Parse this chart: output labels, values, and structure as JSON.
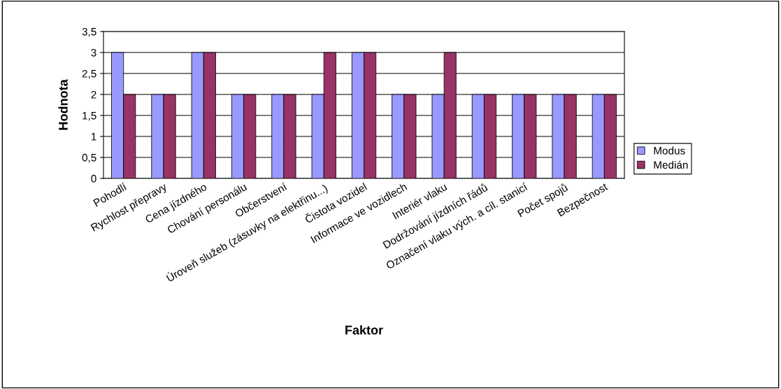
{
  "chart_data": {
    "type": "bar",
    "xlabel": "Faktor",
    "ylabel": "Hodnota",
    "categories": [
      "Pohodlí",
      "Rychlost přepravy",
      "Cena jízdného",
      "Chování personálu",
      "Občerstvení",
      "Úroveň služeb (zásuvky na elektřinu...)",
      "Čistota vozidel",
      "Informace ve vozidlech",
      "Interiér vlaku",
      "Dodržování jízdních řádů",
      "Označení vlaku vých. a cíl. stanicí",
      "Počet spojů",
      "Bezpečnost"
    ],
    "series": [
      {
        "name": "Modus",
        "color": "#9999ff",
        "values": [
          3,
          2,
          3,
          2,
          2,
          2,
          3,
          2,
          2,
          2,
          2,
          2,
          2
        ]
      },
      {
        "name": "Medián",
        "color": "#993366",
        "values": [
          2,
          2,
          3,
          2,
          2,
          3,
          3,
          2,
          3,
          2,
          2,
          2,
          2
        ]
      }
    ],
    "ylim": [
      0,
      3.5
    ],
    "yticks": [
      {
        "value": 0,
        "label": "0"
      },
      {
        "value": 0.5,
        "label": "0,5"
      },
      {
        "value": 1,
        "label": "1"
      },
      {
        "value": 1.5,
        "label": "1,5"
      },
      {
        "value": 2,
        "label": "2"
      },
      {
        "value": 2.5,
        "label": "2,5"
      },
      {
        "value": 3,
        "label": "3"
      },
      {
        "value": 3.5,
        "label": "3,5"
      }
    ],
    "grid": "y",
    "legend": "right"
  }
}
